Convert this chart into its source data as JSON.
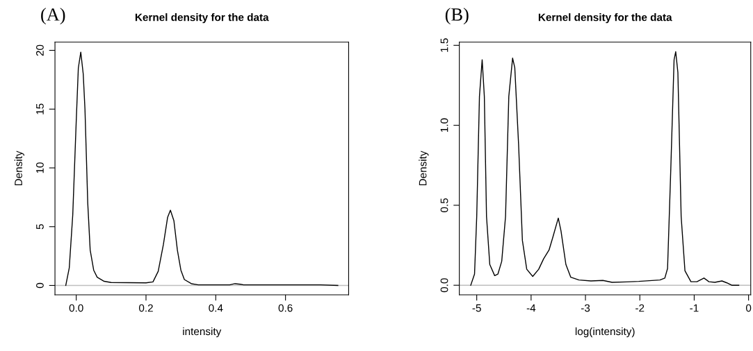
{
  "chart_data": [
    {
      "type": "line",
      "title": "Kernel density for the data",
      "xlabel": "intensity",
      "ylabel": "Density",
      "annotations": [
        "(A)"
      ],
      "grid": false,
      "legend": false,
      "marker": "none",
      "line_style": "solid",
      "xlim": [
        -0.061,
        0.781
      ],
      "ylim": [
        -0.8,
        20.7
      ],
      "xticks": [
        {
          "value": 0,
          "label": "0.0"
        },
        0.2,
        0.4,
        0.6
      ],
      "yticks": [
        0,
        5,
        10,
        15,
        20
      ],
      "ref_lines": [
        {
          "axis": "y",
          "value": 0,
          "label": null,
          "color": "#bebebe"
        }
      ],
      "series": [
        {
          "color": "#000000",
          "x": [
            -0.03,
            -0.02,
            -0.01,
            0.0,
            0.006,
            0.013,
            0.02,
            0.025,
            0.033,
            0.04,
            0.05,
            0.06,
            0.08,
            0.1,
            0.2,
            0.22,
            0.235,
            0.25,
            0.262,
            0.27,
            0.28,
            0.29,
            0.3,
            0.31,
            0.33,
            0.35,
            0.44,
            0.455,
            0.47,
            0.48,
            0.7,
            0.75
          ],
          "values": [
            0.0,
            1.5,
            6,
            14,
            18.5,
            19.85,
            18,
            15,
            7,
            3,
            1.3,
            0.7,
            0.35,
            0.25,
            0.22,
            0.3,
            1.2,
            3.5,
            5.8,
            6.4,
            5.5,
            3,
            1.3,
            0.5,
            0.15,
            0.05,
            0.05,
            0.15,
            0.1,
            0.05,
            0.05,
            0.0
          ]
        }
      ]
    },
    {
      "type": "line",
      "title": "Kernel density for the data",
      "xlabel": "log(intensity)",
      "ylabel": "Density",
      "annotations": [
        "(B)"
      ],
      "grid": false,
      "legend": false,
      "marker": "none",
      "line_style": "solid",
      "xlim": [
        -5.32,
        0.04
      ],
      "ylim": [
        -0.06,
        1.52
      ],
      "xticks": [
        -5,
        -4,
        -3,
        -2,
        -1,
        0
      ],
      "yticks": [
        {
          "value": 0,
          "label": "0.0"
        },
        0.5,
        {
          "value": 1,
          "label": "1.0"
        },
        1.5
      ],
      "ref_lines": [
        {
          "axis": "y",
          "value": 0,
          "label": null,
          "color": "#bebebe"
        }
      ],
      "series": [
        {
          "color": "#000000",
          "x": [
            -5.11,
            -5.04,
            -5.0,
            -4.95,
            -4.9,
            -4.86,
            -4.82,
            -4.76,
            -4.67,
            -4.61,
            -4.54,
            -4.47,
            -4.41,
            -4.34,
            -4.3,
            -4.23,
            -4.16,
            -4.08,
            -3.97,
            -3.86,
            -3.77,
            -3.67,
            -3.6,
            -3.5,
            -3.45,
            -3.36,
            -3.27,
            -3.12,
            -2.9,
            -2.68,
            -2.51,
            -2.24,
            -2.02,
            -1.63,
            -1.54,
            -1.49,
            -1.43,
            -1.37,
            -1.34,
            -1.3,
            -1.24,
            -1.17,
            -1.06,
            -0.95,
            -0.82,
            -0.73,
            -0.62,
            -0.49,
            -0.4,
            -0.31,
            -0.18
          ],
          "values": [
            0.0,
            0.07,
            0.43,
            1.18,
            1.41,
            1.18,
            0.43,
            0.13,
            0.06,
            0.07,
            0.15,
            0.43,
            1.18,
            1.42,
            1.36,
            0.88,
            0.28,
            0.1,
            0.055,
            0.1,
            0.165,
            0.22,
            0.3,
            0.42,
            0.34,
            0.13,
            0.05,
            0.033,
            0.027,
            0.03,
            0.018,
            0.021,
            0.024,
            0.033,
            0.045,
            0.105,
            0.73,
            1.41,
            1.46,
            1.33,
            0.43,
            0.09,
            0.022,
            0.022,
            0.045,
            0.022,
            0.018,
            0.027,
            0.015,
            0.0,
            0.0
          ]
        }
      ]
    }
  ]
}
